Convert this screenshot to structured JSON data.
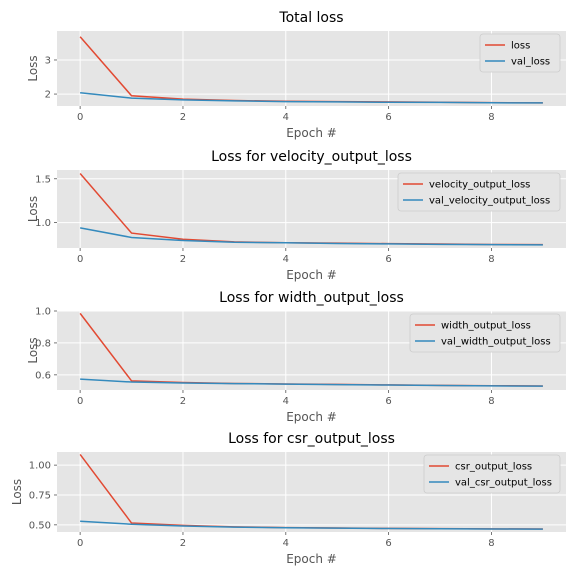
{
  "chart_data": [
    {
      "type": "line",
      "title": "Total loss",
      "xlabel": "Epoch #",
      "ylabel": "Loss",
      "x": [
        0,
        1,
        2,
        3,
        4,
        5,
        6,
        7,
        8,
        9
      ],
      "xticks": [
        0,
        2,
        4,
        6,
        8
      ],
      "xlim": [
        -0.45,
        9.45
      ],
      "yticks": [
        2,
        3
      ],
      "ylim": [
        1.65,
        3.85
      ],
      "grid": true,
      "legend": "upper right",
      "series": [
        {
          "name": "loss",
          "color": "#e24a33",
          "values": [
            3.68,
            1.95,
            1.85,
            1.81,
            1.79,
            1.78,
            1.77,
            1.76,
            1.75,
            1.74
          ]
        },
        {
          "name": "val_loss",
          "color": "#348abd",
          "values": [
            2.04,
            1.88,
            1.83,
            1.8,
            1.78,
            1.77,
            1.76,
            1.755,
            1.745,
            1.74
          ]
        }
      ]
    },
    {
      "type": "line",
      "title": "Loss for velocity_output_loss",
      "xlabel": "Epoch #",
      "ylabel": "Loss",
      "x": [
        0,
        1,
        2,
        3,
        4,
        5,
        6,
        7,
        8,
        9
      ],
      "xticks": [
        0,
        2,
        4,
        6,
        8
      ],
      "xlim": [
        -0.45,
        9.45
      ],
      "yticks": [
        1.0,
        1.5
      ],
      "ytick_labels": [
        "1.0",
        "1.5"
      ],
      "ylim": [
        0.71,
        1.6
      ],
      "grid": true,
      "legend": "upper right",
      "series": [
        {
          "name": "velocity_output_loss",
          "color": "#e24a33",
          "values": [
            1.56,
            0.88,
            0.81,
            0.78,
            0.77,
            0.765,
            0.76,
            0.755,
            0.75,
            0.748
          ]
        },
        {
          "name": "val_velocity_output_loss",
          "color": "#348abd",
          "values": [
            0.94,
            0.83,
            0.795,
            0.775,
            0.77,
            0.762,
            0.757,
            0.752,
            0.748,
            0.746
          ]
        }
      ]
    },
    {
      "type": "line",
      "title": "Loss for width_output_loss",
      "xlabel": "Epoch #",
      "ylabel": "Loss",
      "x": [
        0,
        1,
        2,
        3,
        4,
        5,
        6,
        7,
        8,
        9
      ],
      "xticks": [
        0,
        2,
        4,
        6,
        8
      ],
      "xlim": [
        -0.45,
        9.45
      ],
      "yticks": [
        0.6,
        0.8,
        1.0
      ],
      "ytick_labels": [
        "0.6",
        "0.8",
        "1.0"
      ],
      "ylim": [
        0.505,
        1.0
      ],
      "grid": true,
      "legend": "upper right",
      "series": [
        {
          "name": "width_output_loss",
          "color": "#e24a33",
          "values": [
            0.985,
            0.562,
            0.552,
            0.546,
            0.543,
            0.54,
            0.537,
            0.534,
            0.532,
            0.53
          ]
        },
        {
          "name": "val_width_output_loss",
          "color": "#348abd",
          "values": [
            0.573,
            0.555,
            0.549,
            0.545,
            0.542,
            0.539,
            0.536,
            0.533,
            0.531,
            0.529
          ]
        }
      ]
    },
    {
      "type": "line",
      "title": "Loss for csr_output_loss",
      "xlabel": "Epoch #",
      "ylabel": "Loss",
      "x": [
        0,
        1,
        2,
        3,
        4,
        5,
        6,
        7,
        8,
        9
      ],
      "xticks": [
        0,
        2,
        4,
        6,
        8
      ],
      "xlim": [
        -0.45,
        9.45
      ],
      "yticks": [
        0.5,
        0.75,
        1.0
      ],
      "ytick_labels": [
        "0.50",
        "0.75",
        "1.00"
      ],
      "ylim": [
        0.44,
        1.11
      ],
      "grid": true,
      "legend": "upper right",
      "series": [
        {
          "name": "csr_output_loss",
          "color": "#e24a33",
          "values": [
            1.09,
            0.515,
            0.495,
            0.483,
            0.477,
            0.473,
            0.47,
            0.468,
            0.466,
            0.465
          ]
        },
        {
          "name": "val_csr_output_loss",
          "color": "#348abd",
          "values": [
            0.53,
            0.505,
            0.49,
            0.481,
            0.476,
            0.472,
            0.469,
            0.467,
            0.465,
            0.464
          ]
        }
      ]
    }
  ]
}
